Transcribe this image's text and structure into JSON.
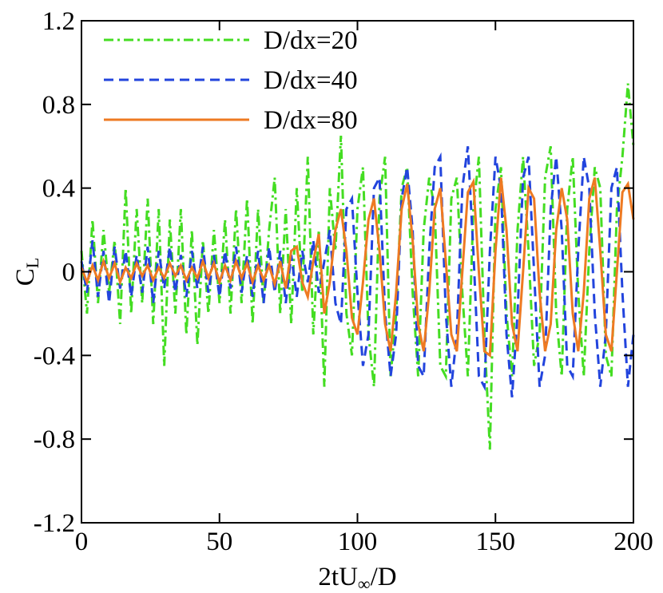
{
  "chart_data": {
    "type": "line",
    "xlabel": [
      "2tU",
      "∞",
      "/D"
    ],
    "ylabel": [
      "C",
      "L"
    ],
    "xlim": [
      0,
      200
    ],
    "xticks": [
      0,
      50,
      100,
      150,
      200
    ],
    "ylim": [
      -1.2,
      1.2
    ],
    "yticks": [
      -1.2,
      -0.8,
      -0.4,
      0,
      0.4,
      0.8,
      1.2
    ],
    "legend": "top-left",
    "x": [
      0,
      2,
      4,
      6,
      8,
      10,
      12,
      14,
      16,
      18,
      20,
      22,
      24,
      26,
      28,
      30,
      32,
      34,
      36,
      38,
      40,
      42,
      44,
      46,
      48,
      50,
      52,
      54,
      56,
      58,
      60,
      62,
      64,
      66,
      68,
      70,
      72,
      74,
      76,
      78,
      80,
      82,
      84,
      86,
      88,
      90,
      92,
      94,
      96,
      98,
      100,
      102,
      104,
      106,
      108,
      110,
      112,
      114,
      116,
      118,
      120,
      122,
      124,
      126,
      128,
      130,
      132,
      134,
      136,
      138,
      140,
      142,
      144,
      146,
      148,
      150,
      152,
      154,
      156,
      158,
      160,
      162,
      164,
      166,
      168,
      170,
      172,
      174,
      176,
      178,
      180,
      182,
      184,
      186,
      188,
      190,
      192,
      194,
      196,
      198,
      200
    ],
    "series": [
      {
        "name": "D/dx=20",
        "color": "#44dd22",
        "dash": "12,5,3,5",
        "values": [
          0.1,
          -0.2,
          0.25,
          -0.15,
          0.2,
          -0.1,
          0.15,
          -0.25,
          0.4,
          -0.2,
          0.3,
          -0.15,
          0.35,
          -0.25,
          0.3,
          -0.45,
          0.25,
          -0.2,
          0.3,
          -0.3,
          0.2,
          -0.35,
          0.15,
          -0.2,
          0.2,
          -0.15,
          0.25,
          -0.2,
          0.3,
          -0.15,
          0.35,
          -0.25,
          0.3,
          -0.15,
          0.2,
          0.45,
          -0.2,
          0.3,
          -0.25,
          0.4,
          -0.1,
          0.55,
          -0.3,
          0.2,
          -0.55,
          0.4,
          0.1,
          0.65,
          -0.2,
          -0.4,
          0.3,
          0.5,
          -0.3,
          -0.55,
          0.35,
          0.55,
          -0.5,
          -0.2,
          0.4,
          0.5,
          -0.1,
          -0.5,
          0.2,
          0.45,
          0.3,
          -0.45,
          -0.5,
          0.35,
          0.45,
          -0.1,
          -0.5,
          0.3,
          0.55,
          -0.3,
          -0.85,
          0.3,
          0.5,
          -0.2,
          -0.5,
          0.2,
          0.55,
          0.1,
          -0.45,
          -0.3,
          0.45,
          0.6,
          -0.2,
          -0.5,
          0.3,
          0.55,
          -0.1,
          -0.5,
          0.1,
          0.5,
          0.4,
          -0.4,
          -0.5,
          0.3,
          0.55,
          0.9,
          0.6
        ]
      },
      {
        "name": "D/dx=40",
        "color": "#2244dd",
        "dash": "12,7",
        "values": [
          0.05,
          -0.1,
          0.15,
          -0.12,
          0.1,
          -0.15,
          0.12,
          -0.08,
          0.1,
          -0.12,
          0.08,
          -0.1,
          0.12,
          -0.15,
          0.1,
          -0.08,
          0.12,
          -0.1,
          0.08,
          -0.12,
          0.1,
          -0.08,
          0.12,
          -0.1,
          0.08,
          -0.12,
          0.1,
          -0.08,
          0.12,
          -0.1,
          0.08,
          -0.12,
          0.1,
          -0.15,
          0.12,
          -0.1,
          0.1,
          -0.15,
          0.08,
          -0.12,
          0.1,
          -0.05,
          0.15,
          -0.1,
          0.05,
          0.2,
          -0.15,
          -0.25,
          0.3,
          0.35,
          -0.1,
          -0.45,
          -0.3,
          0.4,
          0.45,
          -0.2,
          -0.5,
          -0.3,
          0.35,
          0.5,
          0.2,
          -0.45,
          -0.5,
          0.1,
          0.5,
          0.55,
          -0.2,
          -0.55,
          -0.3,
          0.4,
          0.6,
          0.1,
          -0.5,
          -0.55,
          0.1,
          0.55,
          0.4,
          -0.3,
          -0.6,
          -0.2,
          0.45,
          0.55,
          0.0,
          -0.55,
          -0.4,
          0.3,
          0.55,
          0.2,
          -0.45,
          -0.5,
          0.1,
          0.55,
          0.4,
          -0.2,
          -0.55,
          -0.3,
          0.4,
          0.5,
          -0.1,
          -0.55,
          -0.3
        ]
      },
      {
        "name": "D/dx=80",
        "color": "#ee7a22",
        "dash": "none",
        "values": [
          0.02,
          -0.05,
          0.03,
          -0.04,
          0.05,
          -0.03,
          0.04,
          -0.05,
          0.02,
          -0.03,
          0.04,
          -0.02,
          0.03,
          -0.04,
          0.02,
          -0.03,
          0.04,
          -0.02,
          0.03,
          -0.04,
          0.02,
          -0.03,
          0.05,
          -0.03,
          0.04,
          -0.05,
          0.03,
          -0.04,
          0.05,
          -0.03,
          0.04,
          -0.05,
          0.03,
          -0.04,
          0.03,
          -0.06,
          0.05,
          -0.08,
          0.1,
          0.12,
          -0.05,
          -0.12,
          0.05,
          0.18,
          -0.2,
          -0.05,
          0.2,
          0.3,
          0.1,
          -0.22,
          -0.3,
          -0.05,
          0.25,
          0.35,
          0.1,
          -0.25,
          -0.38,
          -0.1,
          0.3,
          0.42,
          0.15,
          -0.25,
          -0.38,
          -0.1,
          0.3,
          0.4,
          0.05,
          -0.3,
          -0.38,
          0.0,
          0.38,
          0.43,
          0.0,
          -0.38,
          -0.4,
          0.1,
          0.45,
          0.2,
          -0.25,
          -0.38,
          0.0,
          0.4,
          0.35,
          -0.1,
          -0.38,
          -0.25,
          0.2,
          0.4,
          0.25,
          -0.2,
          -0.38,
          -0.1,
          0.35,
          0.45,
          0.1,
          -0.3,
          -0.38,
          0.0,
          0.38,
          0.42,
          0.25
        ]
      }
    ]
  }
}
